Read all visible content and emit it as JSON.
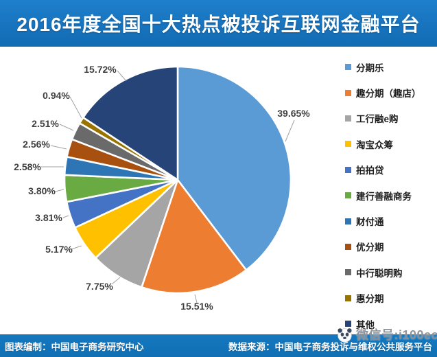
{
  "header": {
    "title": "2016年度全国十大热点被投诉互联网金融平台",
    "background": "#1873bd",
    "text_color": "#ffffff"
  },
  "chart_data": {
    "type": "pie",
    "title": "2016年度全国十大热点被投诉互联网金融平台",
    "unit": "percent",
    "start_angle_deg": 0,
    "direction": "clockwise",
    "legend_position": "right",
    "series": [
      {
        "name": "分期乐",
        "value": 39.65,
        "label": "39.65%",
        "color": "#5B9BD5"
      },
      {
        "name": "趣分期（趣店）",
        "value": 15.51,
        "label": "15.51%",
        "color": "#ED7D31"
      },
      {
        "name": "工行融e购",
        "value": 7.75,
        "label": "7.75%",
        "color": "#A5A5A5"
      },
      {
        "name": "淘宝众筹",
        "value": 5.17,
        "label": "5.17%",
        "color": "#FFC000"
      },
      {
        "name": "拍拍贷",
        "value": 3.81,
        "label": "3.81%",
        "color": "#4472C4"
      },
      {
        "name": "建行善融商务",
        "value": 3.8,
        "label": "3.80%",
        "color": "#6AAA43"
      },
      {
        "name": "财付通",
        "value": 2.58,
        "label": "2.58%",
        "color": "#2E75B6"
      },
      {
        "name": "优分期",
        "value": 2.56,
        "label": "2.56%",
        "color": "#A8500F"
      },
      {
        "name": "中行聪明购",
        "value": 2.51,
        "label": "2.51%",
        "color": "#6A6A6A"
      },
      {
        "name": "惠分期",
        "value": 0.94,
        "label": "0.94%",
        "color": "#997300"
      },
      {
        "name": "其他",
        "value": 15.72,
        "label": "15.72%",
        "color": "#264478"
      }
    ]
  },
  "footer": {
    "left": "图表编制：中国电子商务研究中心",
    "right": "数据来源：中国电子商务投诉与维权公共服务平台",
    "background": "#116fb4"
  },
  "watermark": {
    "icon": "panda-icon",
    "text": "微信号:i100ec"
  }
}
